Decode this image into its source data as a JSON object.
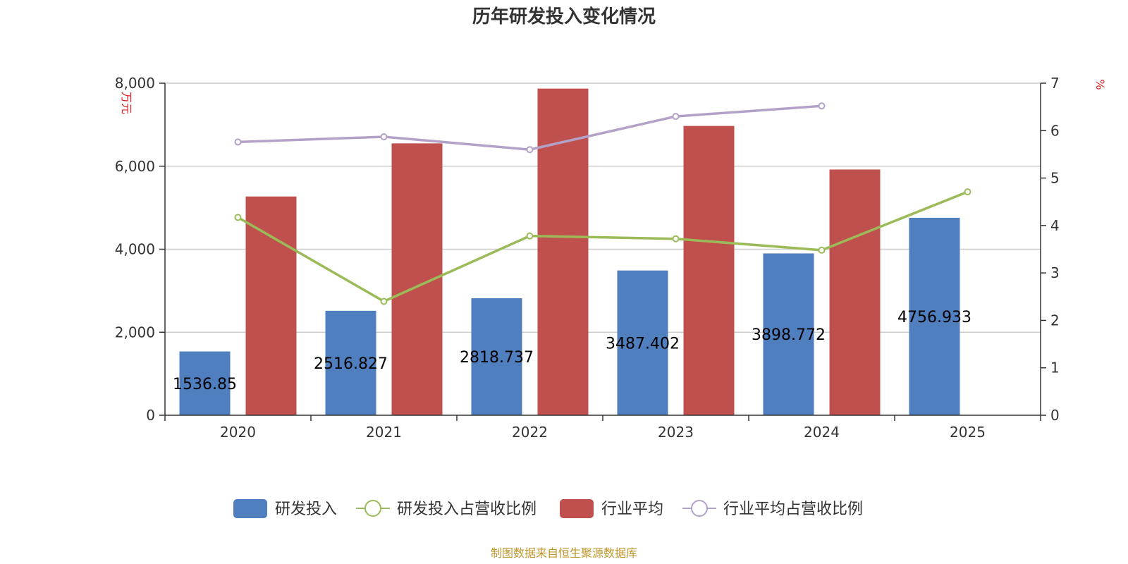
{
  "chart_data": {
    "type": "bar",
    "title": "历年研发投入变化情况",
    "categories": [
      "2020",
      "2021",
      "2022",
      "2023",
      "2024",
      "2025"
    ],
    "y_left": {
      "unit": "万元",
      "ylim": [
        0,
        8000
      ],
      "ticks": [
        "0",
        "2,000",
        "4,000",
        "6,000",
        "8,000"
      ],
      "tick_values": [
        0,
        2000,
        4000,
        6000,
        8000
      ]
    },
    "y_right": {
      "unit": "%",
      "ylim": [
        0,
        7
      ],
      "ticks": [
        "0",
        "1",
        "2",
        "3",
        "4",
        "5",
        "6",
        "7"
      ],
      "tick_values": [
        0,
        1,
        2,
        3,
        4,
        5,
        6,
        7
      ]
    },
    "series": [
      {
        "name": "研发投入",
        "kind": "bar",
        "axis": "left",
        "color": "#4f7fbf",
        "values": [
          1536.85,
          2516.827,
          2818.737,
          3487.402,
          3898.772,
          4756.933
        ],
        "labels": [
          "1536.85",
          "2516.827",
          "2818.737",
          "3487.402",
          "3898.772",
          "4756.933"
        ]
      },
      {
        "name": "研发投入占营收比例",
        "kind": "line",
        "axis": "right",
        "color": "#9bbb59",
        "values": [
          4.17,
          2.4,
          3.78,
          3.72,
          3.48,
          4.71
        ]
      },
      {
        "name": "行业平均",
        "kind": "bar",
        "axis": "left",
        "color": "#c0504d",
        "values": [
          5270,
          6550,
          7870,
          6970,
          5920,
          null
        ]
      },
      {
        "name": "行业平均占营收比例",
        "kind": "line",
        "axis": "right",
        "color": "#b3a2c7",
        "values": [
          5.76,
          5.87,
          5.6,
          6.3,
          6.52,
          null
        ]
      }
    ],
    "grid": true,
    "legend_position": "bottom"
  },
  "source_note": "制图数据来自恒生聚源数据库"
}
